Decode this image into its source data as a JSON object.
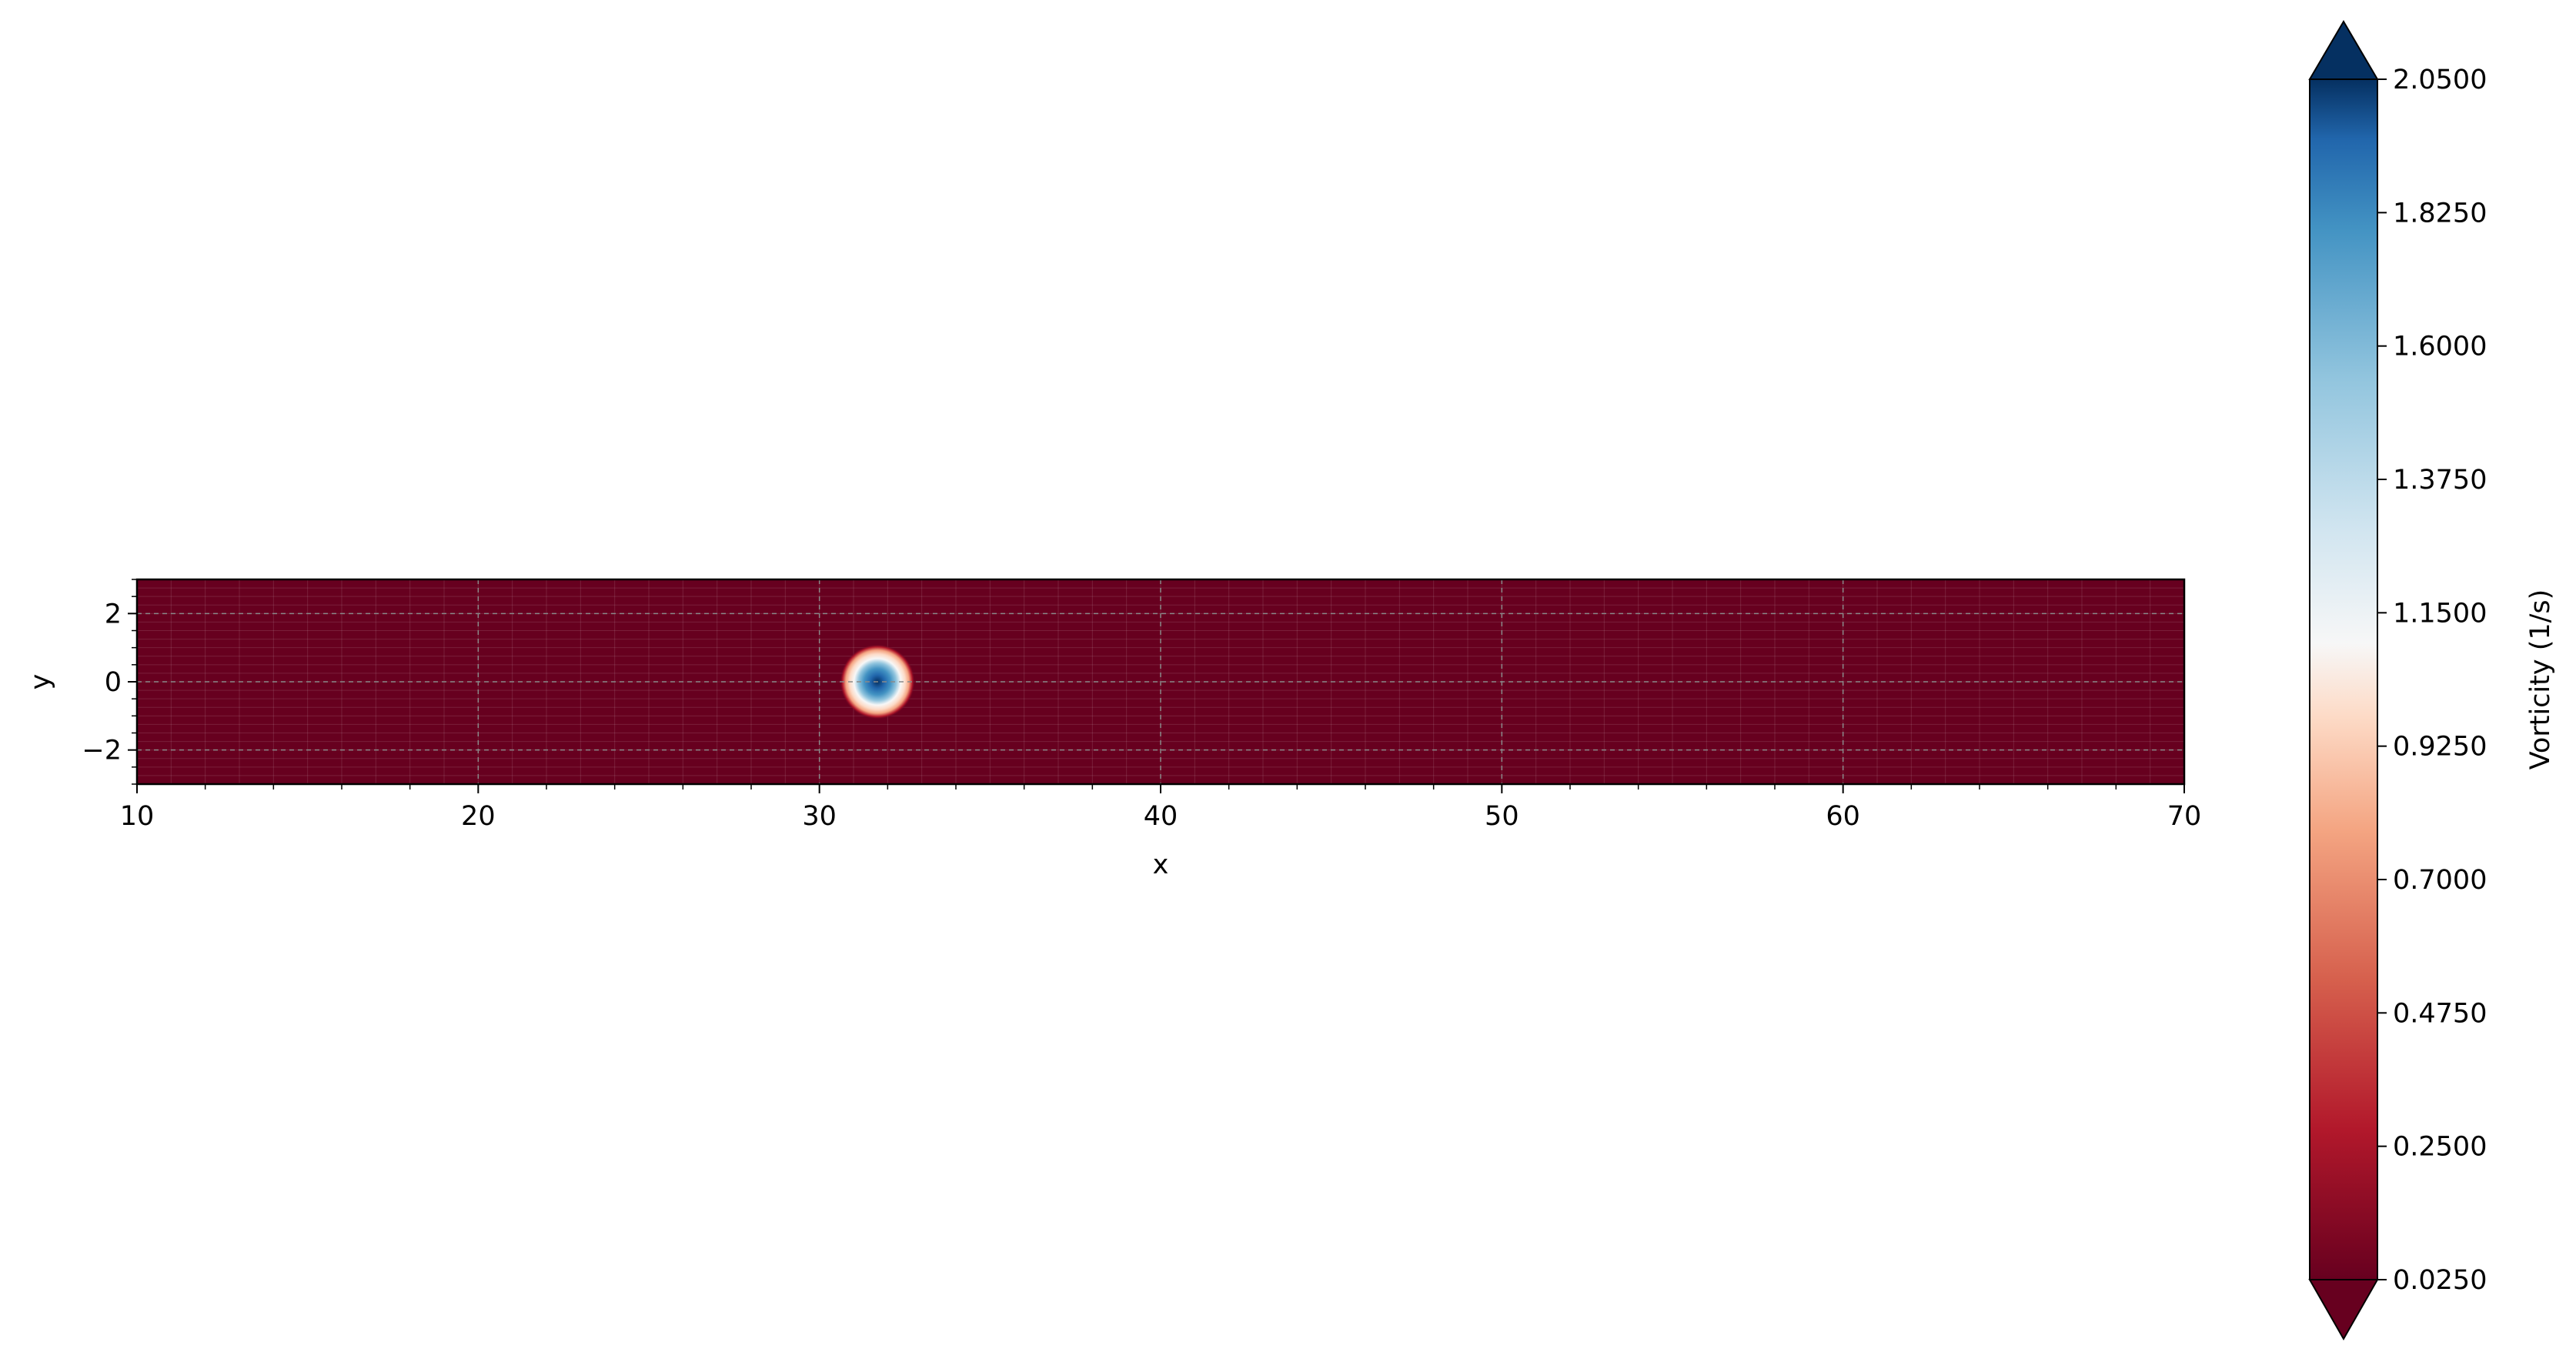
{
  "chart_data": {
    "type": "heatmap",
    "title": "",
    "xlabel": "x",
    "ylabel": "y",
    "xlim": [
      10,
      70
    ],
    "ylim": [
      -3,
      3
    ],
    "x_ticks": [
      10,
      20,
      30,
      40,
      50,
      60,
      70
    ],
    "y_ticks": [
      -2,
      0,
      2
    ],
    "x_tick_labels": [
      "10",
      "20",
      "30",
      "40",
      "50",
      "60",
      "70"
    ],
    "y_tick_labels": [
      "−2",
      "0",
      "2"
    ],
    "grid": true,
    "colormap": "RdBu",
    "colorbar": {
      "label": "Vorticity (1/s)",
      "ticks": [
        0.025,
        0.25,
        0.475,
        0.7,
        0.925,
        1.15,
        1.375,
        1.6,
        1.825,
        2.05
      ],
      "tick_labels": [
        "0.0250",
        "0.2500",
        "0.4750",
        "0.7000",
        "0.9250",
        "1.1500",
        "1.3750",
        "1.6000",
        "1.8250",
        "2.0500"
      ],
      "range": [
        0.025,
        2.05
      ],
      "extend": "both",
      "position": "right"
    },
    "field": {
      "background_value": 0.025,
      "vortex_center": [
        31.7,
        0.0
      ],
      "vortex_peak": 2.05,
      "vortex_radius": 1.1
    }
  },
  "colors": {
    "low": "#67001f",
    "mid": "#f7f7f7",
    "high": "#053061"
  }
}
